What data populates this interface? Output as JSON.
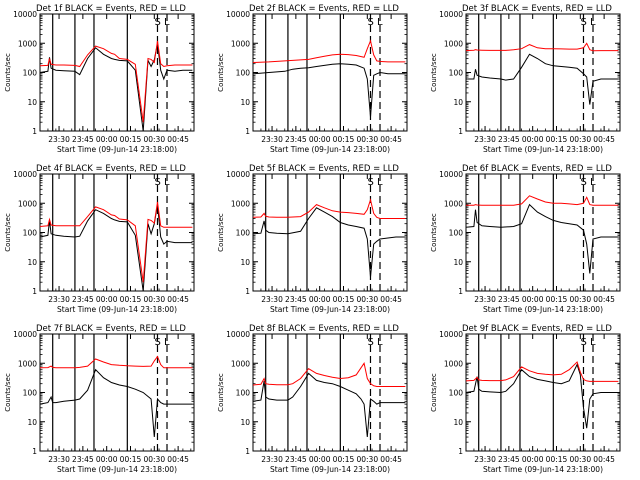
{
  "figure": {
    "x_tick_labels": [
      "23:30",
      "23:45",
      "00:00",
      "00:15",
      "00:30",
      "00:45"
    ],
    "x_ticks_min_from_start": [
      12,
      27,
      42,
      57,
      72,
      87
    ],
    "y_tick_labels": [
      "1",
      "10",
      "100",
      "1000",
      "10000"
    ],
    "y_ticks": [
      1,
      10,
      100,
      1000,
      10000
    ],
    "ylabel": "Counts/sec",
    "xlabel": "Start Time (09-Jun-14 23:18:00)",
    "marker_labels": [
      "S",
      "L"
    ]
  },
  "chart_data": [
    {
      "type": "line",
      "title": "Det 1f BLACK = Events, RED = LLD",
      "xlabel": "Start Time (09-Jun-14 23:18:00)",
      "ylabel": "Counts/sec",
      "yscale": "log",
      "ylim": [
        1,
        10000
      ],
      "xlim_min_from_start": [
        0,
        97
      ],
      "vlines_solid": [
        8,
        22,
        34,
        55
      ],
      "vlines_dashed": [
        74,
        80
      ],
      "x": [
        0,
        5,
        6,
        7,
        10,
        15,
        22,
        25,
        30,
        35,
        40,
        45,
        47,
        50,
        55,
        60,
        65,
        68,
        70,
        72,
        74,
        76,
        78,
        80,
        85,
        90,
        96
      ],
      "series": [
        {
          "name": "BLACK = Events",
          "color": "#000000",
          "values": [
            100,
            110,
            330,
            140,
            120,
            115,
            110,
            85,
            300,
            700,
            420,
            300,
            280,
            260,
            250,
            120,
            1,
            260,
            160,
            270,
            1000,
            120,
            60,
            120,
            110,
            120,
            120
          ]
        },
        {
          "name": "RED = LLD",
          "color": "#ff0000",
          "values": [
            170,
            175,
            300,
            190,
            180,
            180,
            175,
            160,
            400,
            800,
            650,
            450,
            420,
            300,
            280,
            190,
            2,
            300,
            280,
            220,
            1200,
            200,
            160,
            170,
            180,
            180,
            180
          ]
        }
      ]
    },
    {
      "type": "line",
      "title": "Det 2f BLACK = Events, RED = LLD",
      "xlabel": "Start Time (09-Jun-14 23:18:00)",
      "ylabel": "Counts/sec",
      "yscale": "log",
      "ylim": [
        1,
        10000
      ],
      "xlim_min_from_start": [
        0,
        97
      ],
      "vlines_solid": [
        8,
        22,
        34,
        55
      ],
      "vlines_dashed": [
        74,
        80
      ],
      "x": [
        0,
        10,
        20,
        25,
        30,
        35,
        40,
        45,
        50,
        55,
        60,
        65,
        70,
        72,
        74,
        76,
        78,
        80,
        85,
        90,
        96
      ],
      "series": [
        {
          "name": "BLACK = Events",
          "color": "#000000",
          "values": [
            90,
            100,
            110,
            130,
            140,
            145,
            160,
            175,
            190,
            200,
            190,
            180,
            140,
            60,
            3,
            80,
            90,
            100,
            90,
            90,
            90
          ]
        },
        {
          "name": "RED = LLD",
          "color": "#ff0000",
          "values": [
            220,
            230,
            250,
            260,
            270,
            280,
            320,
            360,
            400,
            420,
            410,
            380,
            330,
            650,
            1200,
            400,
            250,
            240,
            230,
            230,
            230
          ]
        }
      ]
    },
    {
      "type": "line",
      "title": "Det 3f BLACK = Events, RED = LLD",
      "xlabel": "Start Time (09-Jun-14 23:18:00)",
      "ylabel": "Counts/sec",
      "yscale": "log",
      "ylim": [
        1,
        10000
      ],
      "xlim_min_from_start": [
        0,
        97
      ],
      "vlines_solid": [
        8,
        22,
        34,
        55
      ],
      "vlines_dashed": [
        74,
        80
      ],
      "x": [
        0,
        5,
        6,
        7,
        10,
        15,
        22,
        25,
        30,
        35,
        40,
        45,
        50,
        55,
        60,
        65,
        70,
        74,
        76,
        78,
        80,
        85,
        90,
        96
      ],
      "series": [
        {
          "name": "BLACK = Events",
          "color": "#000000",
          "values": [
            60,
            60,
            130,
            80,
            70,
            65,
            60,
            55,
            60,
            150,
            420,
            300,
            200,
            170,
            160,
            150,
            140,
            90,
            70,
            8,
            50,
            60,
            60,
            60
          ]
        },
        {
          "name": "RED = LLD",
          "color": "#ff0000",
          "values": [
            560,
            580,
            600,
            590,
            580,
            570,
            570,
            570,
            600,
            650,
            900,
            700,
            650,
            650,
            640,
            630,
            630,
            700,
            1000,
            600,
            550,
            560,
            560,
            560
          ]
        }
      ]
    },
    {
      "type": "line",
      "title": "Det 4f BLACK = Events, RED = LLD",
      "xlabel": "Start Time (09-Jun-14 23:18:00)",
      "ylabel": "Counts/sec",
      "yscale": "log",
      "ylim": [
        1,
        10000
      ],
      "xlim_min_from_start": [
        0,
        97
      ],
      "vlines_solid": [
        8,
        22,
        34,
        55
      ],
      "vlines_dashed": [
        74,
        80
      ],
      "x": [
        0,
        5,
        6,
        7,
        10,
        15,
        22,
        25,
        30,
        35,
        40,
        45,
        47,
        50,
        55,
        60,
        65,
        68,
        70,
        72,
        74,
        76,
        78,
        80,
        85,
        90,
        96
      ],
      "series": [
        {
          "name": "BLACK = Events",
          "color": "#000000",
          "values": [
            70,
            80,
            260,
            90,
            80,
            75,
            70,
            75,
            250,
            600,
            450,
            300,
            270,
            240,
            230,
            80,
            1,
            200,
            90,
            200,
            900,
            70,
            40,
            50,
            45,
            45,
            45
          ]
        },
        {
          "name": "RED = LLD",
          "color": "#ff0000",
          "values": [
            160,
            170,
            280,
            180,
            170,
            170,
            170,
            170,
            350,
            750,
            600,
            400,
            380,
            290,
            270,
            170,
            2,
            280,
            260,
            210,
            1100,
            170,
            150,
            150,
            150,
            150,
            150
          ]
        }
      ]
    },
    {
      "type": "line",
      "title": "Det 5f BLACK = Events, RED = LLD",
      "xlabel": "Start Time (09-Jun-14 23:18:00)",
      "ylabel": "Counts/sec",
      "yscale": "log",
      "ylim": [
        1,
        10000
      ],
      "xlim_min_from_start": [
        0,
        97
      ],
      "vlines_solid": [
        8,
        22,
        34,
        55
      ],
      "vlines_dashed": [
        74,
        80
      ],
      "x": [
        0,
        5,
        7,
        8,
        10,
        15,
        22,
        30,
        35,
        40,
        45,
        50,
        55,
        60,
        65,
        70,
        72,
        74,
        76,
        78,
        80,
        85,
        90,
        96
      ],
      "series": [
        {
          "name": "BLACK = Events",
          "color": "#000000",
          "values": [
            90,
            95,
            250,
            120,
            100,
            95,
            90,
            110,
            300,
            700,
            500,
            350,
            220,
            180,
            160,
            140,
            60,
            3,
            40,
            50,
            60,
            65,
            70,
            70
          ]
        },
        {
          "name": "RED = LLD",
          "color": "#ff0000",
          "values": [
            330,
            340,
            450,
            360,
            340,
            330,
            330,
            350,
            500,
            900,
            700,
            550,
            500,
            480,
            450,
            420,
            600,
            1300,
            450,
            330,
            300,
            300,
            300,
            300
          ]
        }
      ]
    },
    {
      "type": "line",
      "title": "Det 6f BLACK = Events, RED = LLD",
      "xlabel": "Start Time (09-Jun-14 23:18:00)",
      "ylabel": "Counts/sec",
      "yscale": "log",
      "ylim": [
        1,
        10000
      ],
      "xlim_min_from_start": [
        0,
        97
      ],
      "vlines_solid": [
        8,
        22,
        34,
        55
      ],
      "vlines_dashed": [
        74,
        80
      ],
      "x": [
        0,
        5,
        6,
        7,
        10,
        15,
        22,
        30,
        35,
        40,
        45,
        50,
        55,
        60,
        65,
        70,
        74,
        76,
        78,
        80,
        85,
        90,
        96
      ],
      "series": [
        {
          "name": "BLACK = Events",
          "color": "#000000",
          "values": [
            150,
            160,
            600,
            220,
            170,
            160,
            150,
            160,
            200,
            900,
            500,
            350,
            260,
            220,
            200,
            180,
            120,
            40,
            4,
            60,
            70,
            70,
            70
          ]
        },
        {
          "name": "RED = LLD",
          "color": "#ff0000",
          "values": [
            850,
            860,
            900,
            870,
            860,
            850,
            850,
            860,
            950,
            1800,
            1400,
            1100,
            1000,
            1000,
            950,
            900,
            1000,
            1600,
            900,
            850,
            850,
            850,
            850
          ]
        }
      ]
    },
    {
      "type": "line",
      "title": "Det 7f BLACK = Events, RED = LLD",
      "xlabel": "Start Time (09-Jun-14 23:18:00)",
      "ylabel": "Counts/sec",
      "yscale": "log",
      "ylim": [
        1,
        10000
      ],
      "xlim_min_from_start": [
        0,
        97
      ],
      "vlines_solid": [
        8,
        22,
        34,
        55
      ],
      "vlines_dashed": [
        74,
        80
      ],
      "x": [
        0,
        5,
        7,
        8,
        10,
        15,
        22,
        25,
        30,
        35,
        40,
        45,
        50,
        55,
        60,
        65,
        70,
        72,
        74,
        76,
        78,
        80,
        85,
        90,
        96
      ],
      "series": [
        {
          "name": "BLACK = Events",
          "color": "#000000",
          "values": [
            40,
            45,
            70,
            45,
            45,
            50,
            55,
            60,
            120,
            600,
            320,
            220,
            180,
            160,
            130,
            100,
            60,
            3,
            60,
            45,
            40,
            40,
            40,
            40,
            40
          ]
        },
        {
          "name": "RED = LLD",
          "color": "#ff0000",
          "values": [
            700,
            710,
            800,
            720,
            700,
            700,
            700,
            720,
            800,
            1400,
            1100,
            900,
            850,
            820,
            800,
            780,
            800,
            1200,
            1700,
            900,
            700,
            700,
            700,
            700,
            700
          ]
        }
      ]
    },
    {
      "type": "line",
      "title": "Det 8f BLACK = Events, RED = LLD",
      "xlabel": "Start Time (09-Jun-14 23:18:00)",
      "ylabel": "Counts/sec",
      "yscale": "log",
      "ylim": [
        1,
        10000
      ],
      "xlim_min_from_start": [
        0,
        97
      ],
      "vlines_solid": [
        8,
        22,
        34,
        55
      ],
      "vlines_dashed": [
        74,
        80
      ],
      "x": [
        0,
        5,
        7,
        8,
        10,
        15,
        22,
        25,
        30,
        35,
        40,
        45,
        50,
        55,
        60,
        65,
        68,
        70,
        72,
        74,
        76,
        78,
        80,
        85,
        90,
        96
      ],
      "series": [
        {
          "name": "BLACK = Events",
          "color": "#000000",
          "values": [
            50,
            55,
            250,
            70,
            60,
            55,
            55,
            70,
            160,
            450,
            260,
            220,
            200,
            160,
            120,
            90,
            60,
            40,
            3,
            60,
            50,
            40,
            45,
            45,
            45,
            45
          ]
        },
        {
          "name": "RED = LLD",
          "color": "#ff0000",
          "values": [
            180,
            190,
            300,
            200,
            190,
            185,
            185,
            200,
            300,
            650,
            450,
            380,
            330,
            300,
            320,
            400,
            700,
            1000,
            300,
            200,
            170,
            160,
            160,
            160,
            160,
            160
          ]
        }
      ]
    },
    {
      "type": "line",
      "title": "Det 9f BLACK = Events, RED = LLD",
      "xlabel": "Start Time (09-Jun-14 23:18:00)",
      "ylabel": "Counts/sec",
      "yscale": "log",
      "ylim": [
        1,
        10000
      ],
      "xlim_min_from_start": [
        0,
        97
      ],
      "vlines_solid": [
        8,
        22,
        34,
        55
      ],
      "vlines_dashed": [
        74,
        80
      ],
      "x": [
        0,
        5,
        7,
        8,
        10,
        15,
        22,
        25,
        30,
        35,
        40,
        45,
        50,
        55,
        60,
        65,
        70,
        72,
        74,
        76,
        78,
        80,
        85,
        90,
        96
      ],
      "series": [
        {
          "name": "BLACK = Events",
          "color": "#000000",
          "values": [
            100,
            110,
            350,
            130,
            110,
            105,
            100,
            110,
            200,
            600,
            350,
            280,
            250,
            220,
            200,
            250,
            900,
            400,
            30,
            6,
            60,
            90,
            100,
            100,
            100
          ]
        },
        {
          "name": "RED = LLD",
          "color": "#ff0000",
          "values": [
            250,
            260,
            330,
            270,
            260,
            255,
            255,
            270,
            350,
            750,
            550,
            450,
            420,
            400,
            420,
            600,
            1100,
            500,
            280,
            250,
            240,
            240,
            240,
            240,
            240
          ]
        }
      ]
    }
  ]
}
